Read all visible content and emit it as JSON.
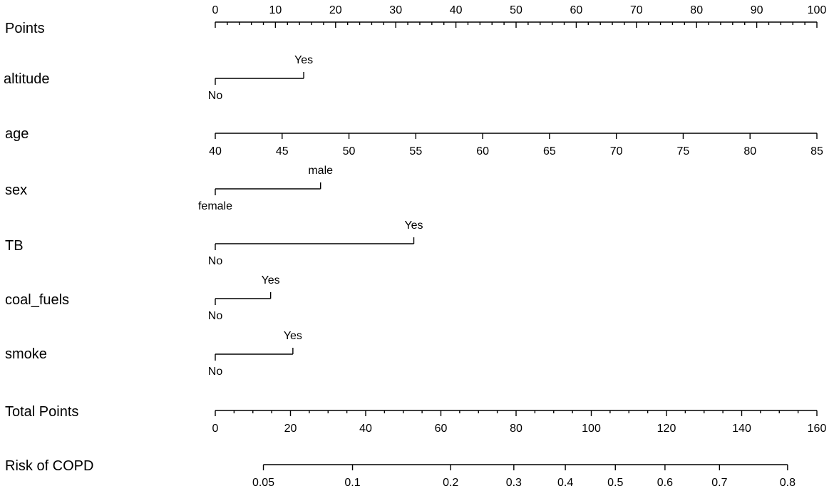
{
  "chart_data": {
    "type": "nomogram",
    "rows": [
      {
        "label": "Points",
        "kind": "axis",
        "ticks": [
          0,
          10,
          20,
          30,
          40,
          50,
          60,
          70,
          80,
          90,
          100
        ],
        "labels_above": true,
        "minor_per_major": 5,
        "range": [
          0,
          100
        ]
      },
      {
        "label": "altitude",
        "kind": "categorical",
        "levels": [
          {
            "name": "No",
            "points": 0,
            "label_pos": "below"
          },
          {
            "name": "Yes",
            "points": 14.7,
            "label_pos": "above"
          }
        ]
      },
      {
        "label": "age",
        "kind": "continuous",
        "ticks": [
          40,
          45,
          50,
          55,
          60,
          65,
          70,
          75,
          80,
          85
        ],
        "points_range": [
          0,
          100
        ]
      },
      {
        "label": "sex",
        "kind": "categorical",
        "levels": [
          {
            "name": "female",
            "points": 0,
            "label_pos": "below"
          },
          {
            "name": "male",
            "points": 17.5,
            "label_pos": "above"
          }
        ]
      },
      {
        "label": "TB",
        "kind": "categorical",
        "levels": [
          {
            "name": "No",
            "points": 0,
            "label_pos": "below"
          },
          {
            "name": "Yes",
            "points": 33,
            "label_pos": "above"
          }
        ]
      },
      {
        "label": "coal_fuels",
        "kind": "categorical",
        "levels": [
          {
            "name": "No",
            "points": 0,
            "label_pos": "below"
          },
          {
            "name": "Yes",
            "points": 9.2,
            "label_pos": "above"
          }
        ]
      },
      {
        "label": "smoke",
        "kind": "categorical",
        "levels": [
          {
            "name": "No",
            "points": 0,
            "label_pos": "below"
          },
          {
            "name": "Yes",
            "points": 12.9,
            "label_pos": "above"
          }
        ]
      },
      {
        "label": "Total Points",
        "kind": "axis",
        "ticks": [
          0,
          20,
          40,
          60,
          80,
          100,
          120,
          140,
          160
        ],
        "minor_per_major": 4,
        "range": [
          0,
          160
        ]
      },
      {
        "label": "Risk of COPD",
        "kind": "risk",
        "ticks": [
          {
            "label": "0.05",
            "total_points": 12.8
          },
          {
            "label": "0.1",
            "total_points": 36.5
          },
          {
            "label": "0.2",
            "total_points": 62.6
          },
          {
            "label": "0.3",
            "total_points": 79.4
          },
          {
            "label": "0.4",
            "total_points": 93.1
          },
          {
            "label": "0.5",
            "total_points": 106.4
          },
          {
            "label": "0.6",
            "total_points": 119.6
          },
          {
            "label": "0.7",
            "total_points": 134.1
          },
          {
            "label": "0.8",
            "total_points": 152.2
          }
        ]
      }
    ]
  }
}
